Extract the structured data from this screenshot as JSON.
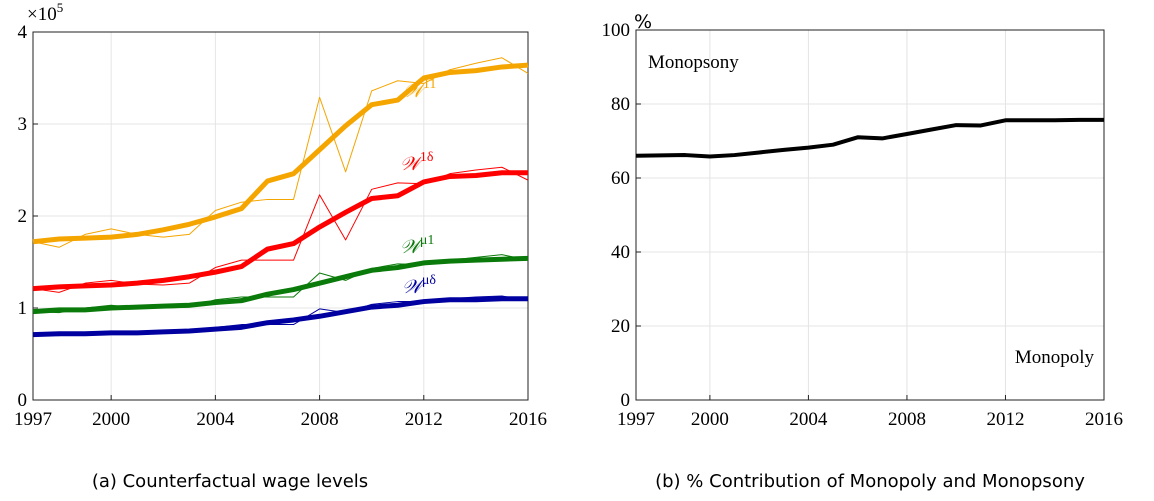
{
  "chart_data": [
    {
      "type": "line",
      "caption": "(a) Counterfactual wage levels",
      "y_multiplier": {
        "base": "×10",
        "exponent": "5"
      },
      "x": [
        1997,
        1998,
        1999,
        2000,
        2001,
        2002,
        2003,
        2004,
        2005,
        2006,
        2007,
        2008,
        2009,
        2010,
        2011,
        2012,
        2013,
        2014,
        2015,
        2016
      ],
      "xlim": [
        1997,
        2016
      ],
      "xticks": [
        1997,
        2000,
        2004,
        2008,
        2012,
        2016
      ],
      "ylim": [
        0,
        4
      ],
      "yticks": [
        0,
        1,
        2,
        3,
        4
      ],
      "grid": true,
      "series": [
        {
          "name": "𝒲",
          "superscript": "11",
          "color": "#f5a500",
          "values": [
            1.72,
            1.75,
            1.76,
            1.77,
            1.8,
            1.85,
            1.91,
            1.99,
            2.08,
            2.38,
            2.46,
            2.72,
            2.98,
            3.21,
            3.26,
            3.5,
            3.56,
            3.58,
            3.62,
            3.64
          ],
          "raw_values": [
            1.72,
            1.66,
            1.8,
            1.86,
            1.8,
            1.77,
            1.8,
            2.06,
            2.15,
            2.18,
            2.18,
            3.29,
            2.48,
            3.36,
            3.47,
            3.44,
            3.59,
            3.66,
            3.72,
            3.55
          ]
        },
        {
          "name": "𝒲",
          "superscript": "1δ",
          "color": "#ff0000",
          "values": [
            1.21,
            1.23,
            1.24,
            1.25,
            1.27,
            1.3,
            1.34,
            1.39,
            1.45,
            1.64,
            1.7,
            1.88,
            2.04,
            2.19,
            2.22,
            2.37,
            2.43,
            2.44,
            2.47,
            2.47
          ],
          "raw_values": [
            1.21,
            1.17,
            1.27,
            1.3,
            1.26,
            1.25,
            1.27,
            1.44,
            1.52,
            1.52,
            1.52,
            2.23,
            1.74,
            2.29,
            2.36,
            2.35,
            2.46,
            2.5,
            2.53,
            2.39
          ]
        },
        {
          "name": "𝒲",
          "superscript": "μ1",
          "color": "#0a7a0a",
          "values": [
            0.96,
            0.98,
            0.98,
            1.0,
            1.01,
            1.02,
            1.03,
            1.06,
            1.08,
            1.15,
            1.2,
            1.27,
            1.34,
            1.41,
            1.44,
            1.49,
            1.51,
            1.52,
            1.53,
            1.54
          ],
          "raw_values": [
            0.96,
            0.95,
            1.0,
            1.03,
            1.0,
            1.0,
            1.01,
            1.09,
            1.12,
            1.12,
            1.12,
            1.38,
            1.3,
            1.43,
            1.48,
            1.47,
            1.52,
            1.55,
            1.58,
            1.52
          ]
        },
        {
          "name": "𝒲",
          "superscript": "μδ",
          "color": "#0000a0",
          "values": [
            0.71,
            0.72,
            0.72,
            0.73,
            0.73,
            0.74,
            0.75,
            0.77,
            0.79,
            0.84,
            0.87,
            0.91,
            0.96,
            1.01,
            1.03,
            1.07,
            1.09,
            1.09,
            1.1,
            1.1
          ],
          "raw_values": [
            0.71,
            0.7,
            0.73,
            0.75,
            0.73,
            0.73,
            0.74,
            0.79,
            0.82,
            0.82,
            0.82,
            0.99,
            0.95,
            1.04,
            1.07,
            1.07,
            1.1,
            1.12,
            1.13,
            1.08
          ]
        }
      ]
    },
    {
      "type": "line",
      "caption": "(b) % Contribution of Monopoly and Monopsony",
      "y_label": "%",
      "x": [
        1997,
        1998,
        1999,
        2000,
        2001,
        2002,
        2003,
        2004,
        2005,
        2006,
        2007,
        2008,
        2009,
        2010,
        2011,
        2012,
        2013,
        2014,
        2015,
        2016
      ],
      "xlim": [
        1997,
        2016
      ],
      "xticks": [
        1997,
        2000,
        2004,
        2008,
        2012,
        2016
      ],
      "ylim": [
        0,
        100
      ],
      "yticks": [
        0,
        20,
        40,
        60,
        80,
        100
      ],
      "grid": true,
      "series": [
        {
          "color": "#000000",
          "values": [
            66,
            66.1,
            66.2,
            65.8,
            66.2,
            66.9,
            67.6,
            68.2,
            69,
            71,
            70.7,
            71.9,
            73.1,
            74.3,
            74.2,
            75.6,
            75.6,
            75.6,
            75.7,
            75.7
          ]
        }
      ],
      "annotations": [
        {
          "text": "Monopsony",
          "color": "#0a7a0a"
        },
        {
          "text": "Monopoly",
          "color": "#ff0000"
        }
      ]
    }
  ]
}
